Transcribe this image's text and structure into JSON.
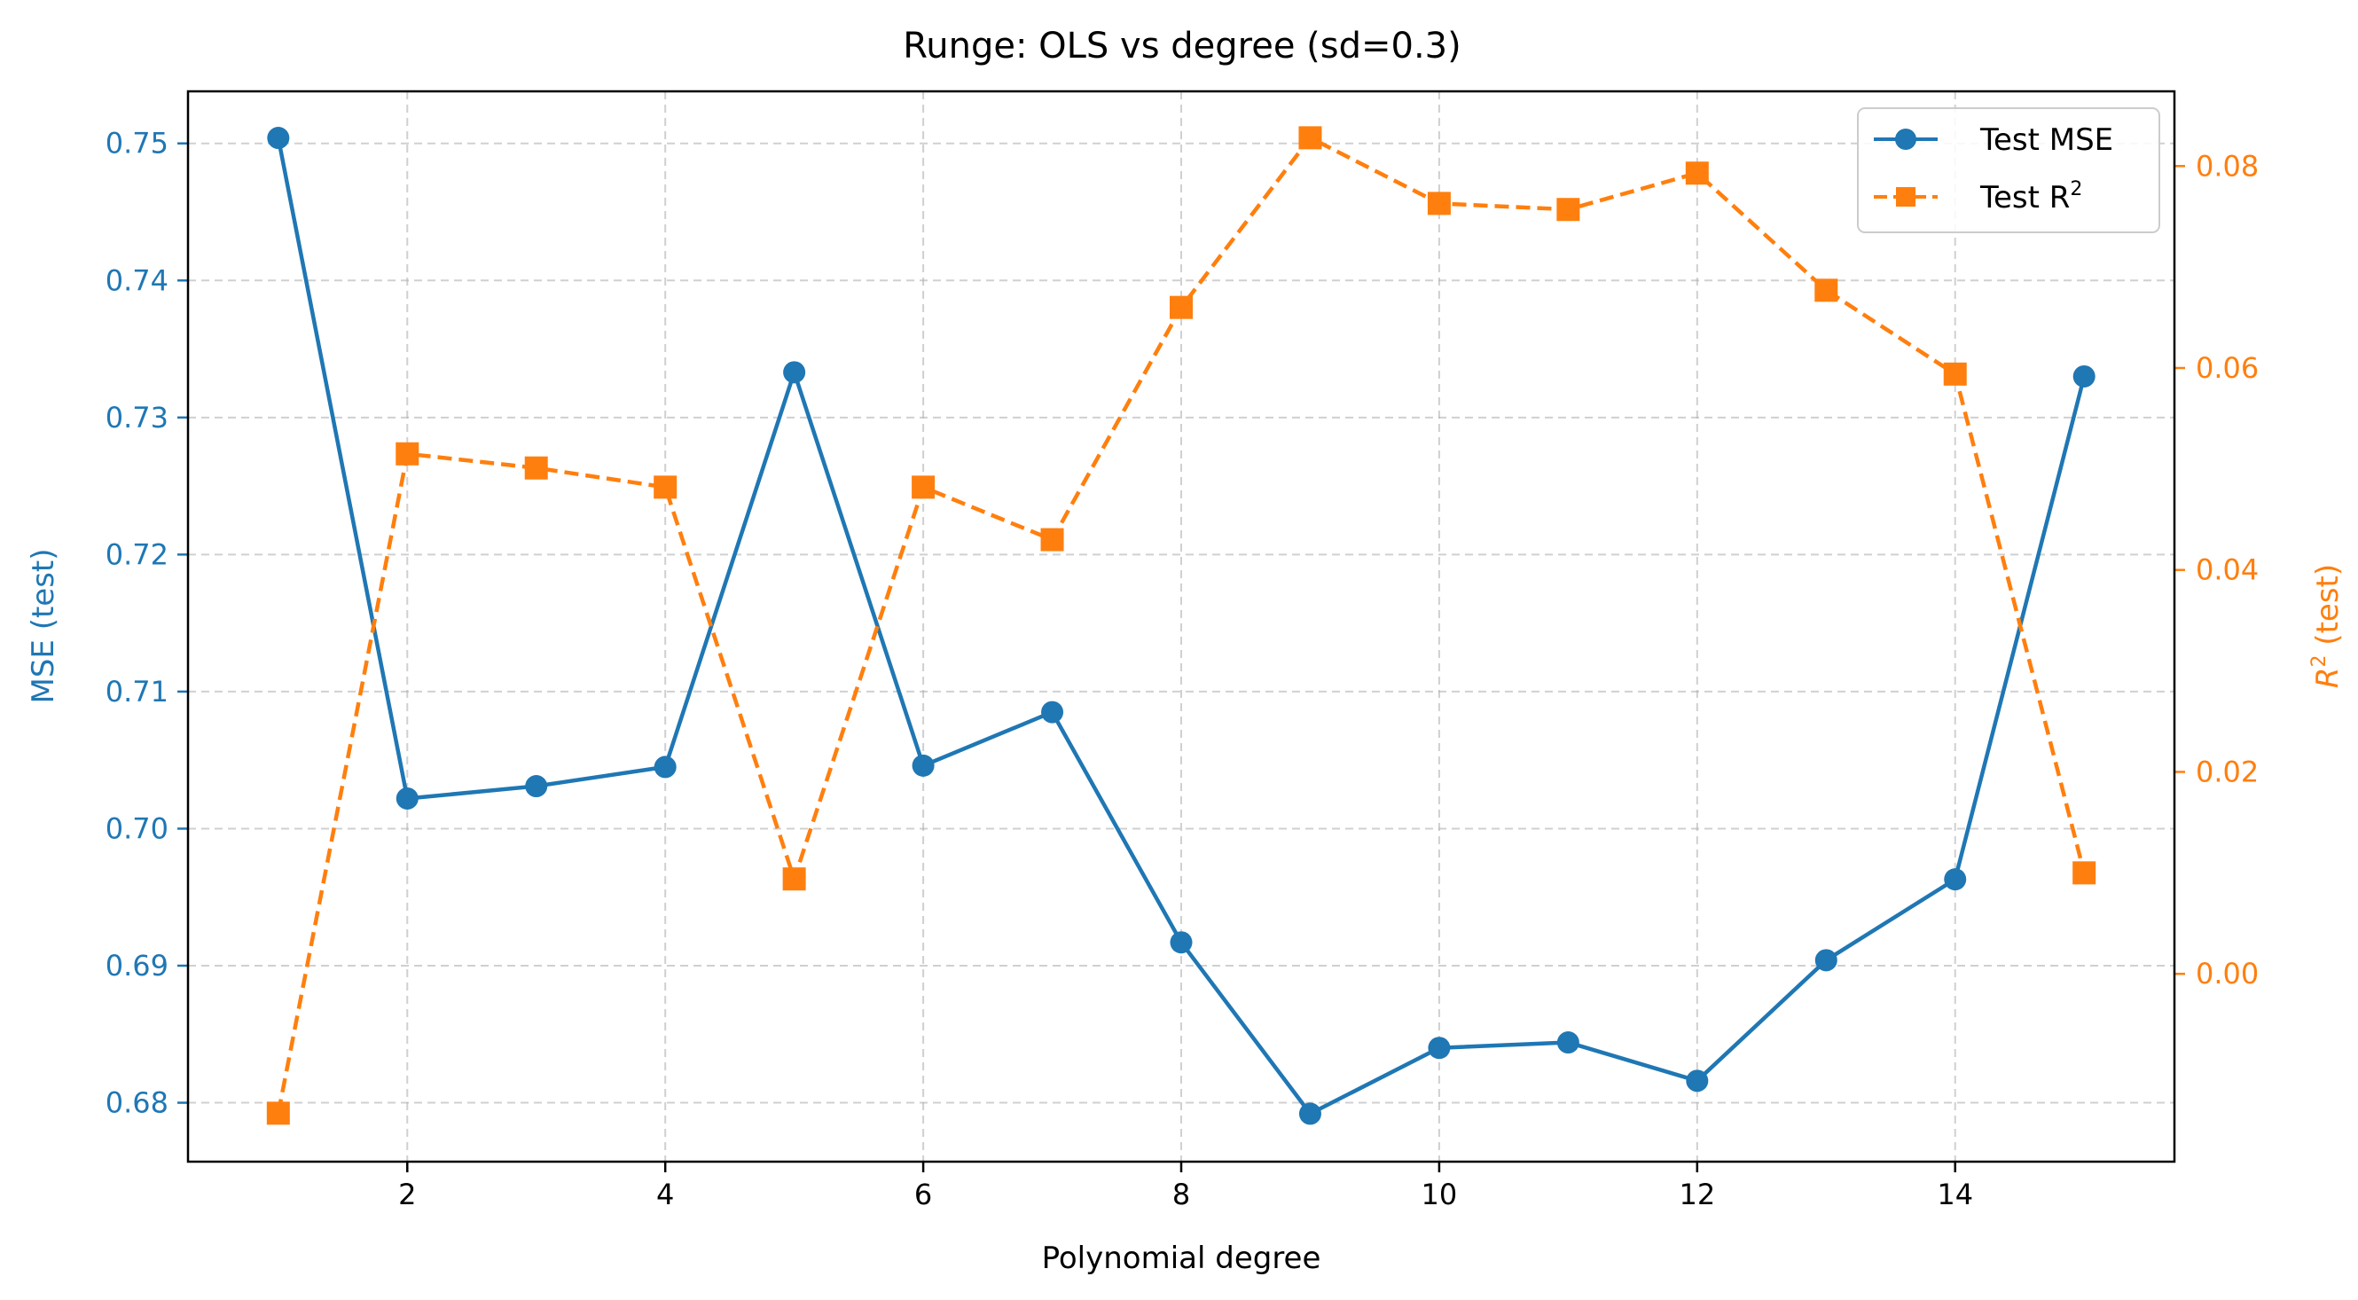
{
  "chart_data": {
    "type": "line",
    "title": "Runge: OLS vs degree (sd=0.3)",
    "xlabel": "Polynomial degree",
    "ylabel_left": "MSE (test)",
    "ylabel_right": {
      "main": "R",
      "sup": "2",
      "suffix": " (test)"
    },
    "x": [
      1,
      2,
      3,
      4,
      5,
      6,
      7,
      8,
      9,
      10,
      11,
      12,
      13,
      14,
      15
    ],
    "xlim": [
      0.3,
      15.7
    ],
    "x_ticks": [
      2,
      4,
      6,
      8,
      10,
      12,
      14
    ],
    "ylim_left": [
      0.6757,
      0.7538
    ],
    "y_ticks_left": [
      0.68,
      0.69,
      0.7,
      0.71,
      0.72,
      0.73,
      0.74,
      0.75
    ],
    "y_tick_labels_left": [
      "0.68",
      "0.69",
      "0.70",
      "0.71",
      "0.72",
      "0.73",
      "0.74",
      "0.75"
    ],
    "ylim_right": [
      -0.0186,
      0.0874
    ],
    "y_ticks_right": [
      0.0,
      0.02,
      0.04,
      0.06,
      0.08
    ],
    "y_tick_labels_right": [
      "0.00",
      "0.02",
      "0.04",
      "0.06",
      "0.08"
    ],
    "grid": true,
    "legend_position": "top-right",
    "series": [
      {
        "name": "Test MSE",
        "axis": "left",
        "color": "#1f77b4",
        "linestyle": "solid",
        "marker": "circle",
        "values": [
          0.7504,
          0.7022,
          0.7031,
          0.7045,
          0.7333,
          0.7046,
          0.7085,
          0.6917,
          0.6792,
          0.684,
          0.6844,
          0.6816,
          0.6904,
          0.6963,
          0.733
        ]
      },
      {
        "name": "Test R",
        "name_sup": "2",
        "axis": "right",
        "color": "#ff7f0e",
        "linestyle": "dashed",
        "marker": "square",
        "values": [
          -0.0138,
          0.0515,
          0.0501,
          0.0482,
          0.0094,
          0.0482,
          0.043,
          0.066,
          0.0828,
          0.0763,
          0.0757,
          0.0793,
          0.0677,
          0.0594,
          0.01
        ]
      }
    ]
  }
}
